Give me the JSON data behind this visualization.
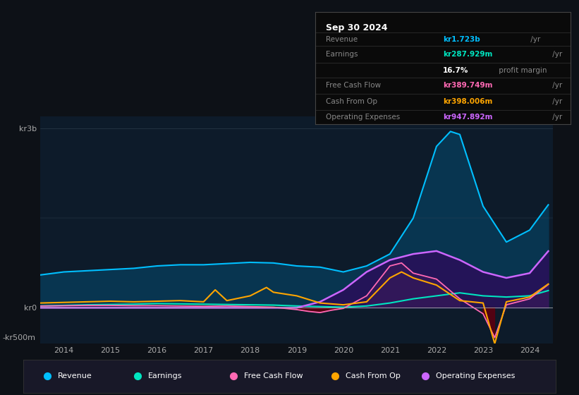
{
  "bg_color": "#0d1117",
  "plot_bg_color": "#0d1b2a",
  "ylim": [
    -600,
    3200
  ],
  "xlabel_years": [
    2014,
    2015,
    2016,
    2017,
    2018,
    2019,
    2020,
    2021,
    2022,
    2023,
    2024
  ],
  "legend_items": [
    {
      "label": "Revenue",
      "color": "#00bfff"
    },
    {
      "label": "Earnings",
      "color": "#00e5c0"
    },
    {
      "label": "Free Cash Flow",
      "color": "#ff69b4"
    },
    {
      "label": "Cash From Op",
      "color": "#ffa500"
    },
    {
      "label": "Operating Expenses",
      "color": "#cc66ff"
    }
  ],
  "info_box": {
    "date": "Sep 30 2024",
    "rows": [
      {
        "label": "Revenue",
        "value": "kr1.723b",
        "suffix": " /yr",
        "value_color": "#00bfff"
      },
      {
        "label": "Earnings",
        "value": "kr287.929m",
        "suffix": " /yr",
        "value_color": "#00e5c0"
      },
      {
        "label": "",
        "value": "16.7%",
        "suffix": " profit margin",
        "value_color": "#ffffff"
      },
      {
        "label": "Free Cash Flow",
        "value": "kr389.749m",
        "suffix": " /yr",
        "value_color": "#ff69b4"
      },
      {
        "label": "Cash From Op",
        "value": "kr398.006m",
        "suffix": " /yr",
        "value_color": "#ffa500"
      },
      {
        "label": "Operating Expenses",
        "value": "kr947.892m",
        "suffix": " /yr",
        "value_color": "#cc66ff"
      }
    ]
  },
  "revenue": {
    "x": [
      2013.5,
      2014.0,
      2014.5,
      2015.0,
      2015.5,
      2016.0,
      2016.5,
      2017.0,
      2017.5,
      2018.0,
      2018.5,
      2019.0,
      2019.5,
      2020.0,
      2020.5,
      2021.0,
      2021.5,
      2022.0,
      2022.3,
      2022.5,
      2023.0,
      2023.5,
      2024.0,
      2024.4
    ],
    "y": [
      550,
      600,
      620,
      640,
      660,
      700,
      720,
      720,
      740,
      760,
      750,
      700,
      680,
      600,
      700,
      900,
      1500,
      2700,
      2950,
      2900,
      1700,
      1100,
      1300,
      1723
    ],
    "color": "#00bfff",
    "fill_color": "#083550"
  },
  "earnings": {
    "x": [
      2013.5,
      2014.0,
      2014.5,
      2015.0,
      2015.5,
      2016.0,
      2016.5,
      2017.0,
      2017.5,
      2018.0,
      2018.5,
      2019.0,
      2019.5,
      2020.0,
      2020.5,
      2021.0,
      2021.5,
      2022.0,
      2022.5,
      2023.0,
      2023.5,
      2024.0,
      2024.4
    ],
    "y": [
      30,
      40,
      50,
      55,
      60,
      70,
      65,
      60,
      55,
      50,
      45,
      30,
      20,
      10,
      30,
      80,
      150,
      200,
      250,
      200,
      180,
      200,
      288
    ],
    "color": "#00e5c0",
    "fill_color": "#083530"
  },
  "free_cash_flow": {
    "x": [
      2013.5,
      2014.0,
      2014.5,
      2015.0,
      2015.5,
      2016.0,
      2016.5,
      2017.0,
      2017.5,
      2018.0,
      2018.5,
      2019.0,
      2019.25,
      2019.5,
      2019.75,
      2020.0,
      2020.5,
      2021.0,
      2021.25,
      2021.5,
      2022.0,
      2022.5,
      2023.0,
      2023.25,
      2023.5,
      2024.0,
      2024.4
    ],
    "y": [
      30,
      35,
      40,
      40,
      35,
      35,
      30,
      25,
      30,
      20,
      10,
      -30,
      -60,
      -80,
      -40,
      -10,
      200,
      700,
      750,
      580,
      480,
      150,
      -100,
      -500,
      50,
      150,
      390
    ],
    "color": "#ff69b4",
    "fill_color_pos": "#3a1a5a",
    "fill_color_neg": "#5a0010"
  },
  "cash_from_op": {
    "x": [
      2013.5,
      2014.0,
      2014.5,
      2015.0,
      2015.5,
      2016.0,
      2016.5,
      2017.0,
      2017.25,
      2017.5,
      2018.0,
      2018.35,
      2018.5,
      2019.0,
      2019.5,
      2020.0,
      2020.5,
      2021.0,
      2021.25,
      2021.5,
      2022.0,
      2022.5,
      2023.0,
      2023.25,
      2023.5,
      2024.0,
      2024.4
    ],
    "y": [
      80,
      90,
      100,
      110,
      100,
      110,
      120,
      100,
      300,
      120,
      200,
      340,
      260,
      200,
      80,
      50,
      100,
      500,
      600,
      500,
      380,
      120,
      80,
      -600,
      100,
      180,
      398
    ],
    "color": "#ffa500"
  },
  "op_expenses": {
    "x": [
      2013.5,
      2014.0,
      2015.0,
      2016.0,
      2017.0,
      2018.0,
      2019.0,
      2019.5,
      2020.0,
      2020.5,
      2021.0,
      2021.5,
      2022.0,
      2022.5,
      2023.0,
      2023.5,
      2024.0,
      2024.4
    ],
    "y": [
      0,
      0,
      0,
      0,
      0,
      0,
      0,
      100,
      300,
      600,
      800,
      900,
      950,
      800,
      600,
      500,
      580,
      948
    ],
    "color": "#cc66ff",
    "fill_color": "#2a0f5a"
  }
}
